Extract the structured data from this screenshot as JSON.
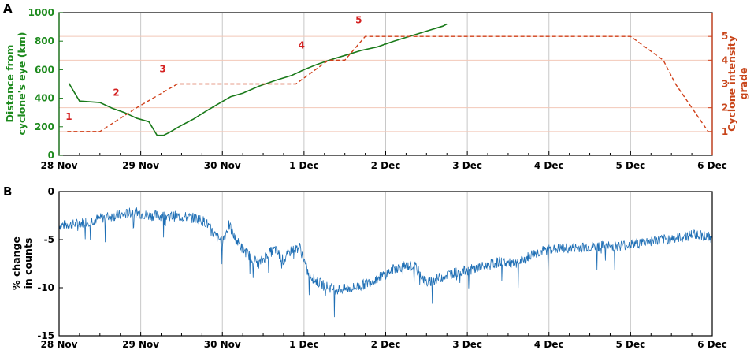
{
  "chart_data": [
    {
      "panel": "A",
      "type": "line",
      "x_ticks": [
        "28 Nov",
        "29 Nov",
        "30 Nov",
        "1 Dec",
        "2 Dec",
        "3 Dec",
        "4 Dec",
        "5 Dec",
        "6 Dec"
      ],
      "xlim": [
        0,
        8
      ],
      "ylabel_left": [
        "Distance from",
        "cyclone's eye (km)"
      ],
      "ylim_left": [
        0,
        1000
      ],
      "yticks_left": [
        "0",
        "200",
        "400",
        "600",
        "800",
        "1000"
      ],
      "ylabel_right": [
        "Cyclone intensity",
        "grade"
      ],
      "ylim_right": [
        0,
        6
      ],
      "yticks_right": [
        "1",
        "2",
        "3",
        "4",
        "5"
      ],
      "grid_x": true,
      "colors": {
        "distance": "#1a7a1a",
        "grade": "#d0401a",
        "grade_grid": "#f2c8b8",
        "day_grid": "#c8c8c8"
      },
      "series": [
        {
          "axis": "left",
          "style": "solid",
          "x": [
            0.12,
            0.25,
            0.5,
            0.65,
            0.8,
            0.95,
            1.1,
            1.2,
            1.28,
            1.35,
            1.5,
            1.65,
            1.8,
            1.95,
            2.1,
            2.25,
            2.45,
            2.65,
            2.85,
            3.0,
            3.15,
            3.3,
            3.5,
            3.7,
            3.9,
            4.1,
            4.3,
            4.5,
            4.7,
            4.75
          ],
          "y": [
            505,
            380,
            370,
            330,
            300,
            260,
            235,
            140,
            140,
            160,
            210,
            255,
            310,
            360,
            410,
            435,
            485,
            525,
            560,
            600,
            635,
            665,
            700,
            735,
            760,
            800,
            835,
            870,
            905,
            920
          ]
        },
        {
          "axis": "right",
          "style": "dashed",
          "x": [
            0.1,
            0.5,
            0.95,
            1.45,
            2.9,
            3.3,
            3.5,
            3.75,
            7.0,
            7.4,
            7.55,
            7.75,
            7.95
          ],
          "y": [
            1,
            1,
            2,
            3,
            3,
            4,
            4,
            5,
            5,
            4,
            3,
            2,
            1
          ]
        }
      ],
      "annotations": [
        {
          "text": "1",
          "x": 0.12,
          "y": 1.5
        },
        {
          "text": "2",
          "x": 0.7,
          "y": 2.5
        },
        {
          "text": "3",
          "x": 1.27,
          "y": 3.5
        },
        {
          "text": "4",
          "x": 2.97,
          "y": 4.5
        },
        {
          "text": "5",
          "x": 3.67,
          "y": 5.55
        }
      ]
    },
    {
      "panel": "B",
      "type": "line",
      "x_ticks": [
        "28 Nov",
        "29 Nov",
        "30 Nov",
        "1 Dec",
        "2 Dec",
        "3 Dec",
        "4 Dec",
        "5 Dec",
        "6 Dec"
      ],
      "xlim": [
        0,
        8
      ],
      "ylabel": [
        "% change",
        "in counts"
      ],
      "ylim": [
        -15,
        0
      ],
      "yticks": [
        "0",
        "-5",
        "-10",
        "-15"
      ],
      "grid_x": true,
      "colors": {
        "trace": "#1f6fb5"
      },
      "series": [
        {
          "x": [
            0,
            0.2,
            0.4,
            0.6,
            0.8,
            0.9,
            1.0,
            1.1,
            1.3,
            1.5,
            1.7,
            1.8,
            1.9,
            2.0,
            2.08,
            2.15,
            2.25,
            2.35,
            2.45,
            2.55,
            2.65,
            2.75,
            2.85,
            2.95,
            3.05,
            3.15,
            3.25,
            3.4,
            3.55,
            3.7,
            3.85,
            4.0,
            4.1,
            4.2,
            4.35,
            4.5,
            4.65,
            4.8,
            5.0,
            5.2,
            5.4,
            5.6,
            5.8,
            6.0,
            6.2,
            6.4,
            6.6,
            6.8,
            7.0,
            7.2,
            7.4,
            7.6,
            7.8,
            8.0
          ],
          "y": [
            -3.5,
            -3.4,
            -3.0,
            -2.6,
            -2.4,
            -2.1,
            -2.3,
            -2.5,
            -2.5,
            -2.6,
            -2.8,
            -3.2,
            -4.5,
            -5.2,
            -3.5,
            -4.8,
            -6.0,
            -6.8,
            -7.5,
            -6.5,
            -6.0,
            -7.2,
            -6.0,
            -5.8,
            -8.5,
            -9.3,
            -9.8,
            -10.2,
            -10.1,
            -9.8,
            -9.2,
            -8.6,
            -8.0,
            -7.8,
            -7.7,
            -9.5,
            -9.0,
            -8.5,
            -8.2,
            -7.8,
            -7.3,
            -7.6,
            -6.5,
            -6.0,
            -5.9,
            -5.8,
            -5.7,
            -5.7,
            -5.5,
            -5.2,
            -5.0,
            -4.8,
            -4.4,
            -4.8
          ]
        }
      ]
    }
  ],
  "panels": {
    "a_label": "A",
    "b_label": "B"
  }
}
